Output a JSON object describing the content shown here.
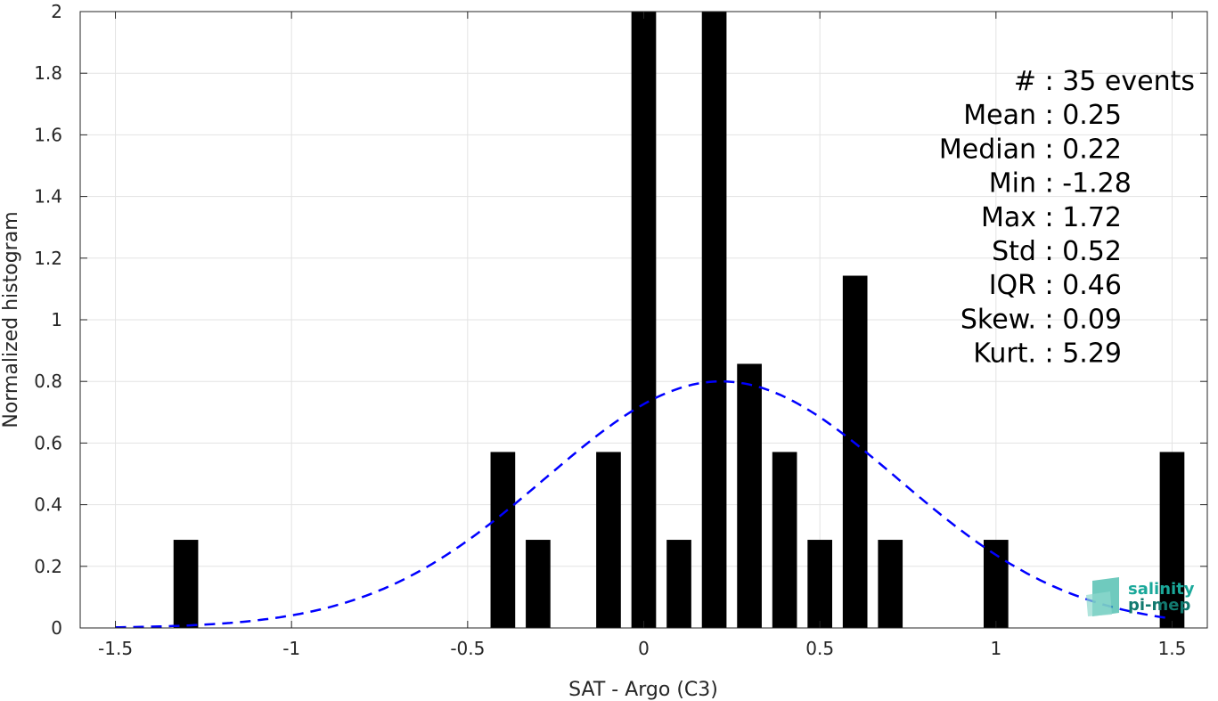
{
  "chart_data": {
    "type": "bar",
    "xlabel": "SAT - Argo (C3)",
    "ylabel": "Normalized histogram",
    "xlim": [
      -1.6,
      1.6
    ],
    "ylim": [
      0,
      2
    ],
    "xticks": [
      -1.5,
      -1,
      -0.5,
      0,
      0.5,
      1,
      1.5
    ],
    "xtick_labels": [
      "-1.5",
      "-1",
      "-0.5",
      "0",
      "0.5",
      "1",
      "1.5"
    ],
    "yticks": [
      0,
      0.2,
      0.4,
      0.6,
      0.8,
      1,
      1.2,
      1.4,
      1.6,
      1.8,
      2
    ],
    "ytick_labels": [
      "0",
      "0.2",
      "0.4",
      "0.6",
      "0.8",
      "1",
      "1.2",
      "1.4",
      "1.6",
      "1.8",
      "2"
    ],
    "grid": true,
    "bar_width": 0.07,
    "bars": [
      {
        "x": -1.3,
        "y": 0.286
      },
      {
        "x": -0.4,
        "y": 0.571
      },
      {
        "x": -0.3,
        "y": 0.286
      },
      {
        "x": -0.1,
        "y": 0.571
      },
      {
        "x": 0.0,
        "y": 2.0
      },
      {
        "x": 0.1,
        "y": 0.286
      },
      {
        "x": 0.2,
        "y": 2.0
      },
      {
        "x": 0.3,
        "y": 0.857
      },
      {
        "x": 0.4,
        "y": 0.571
      },
      {
        "x": 0.5,
        "y": 0.286
      },
      {
        "x": 0.6,
        "y": 1.143
      },
      {
        "x": 0.7,
        "y": 0.286
      },
      {
        "x": 1.0,
        "y": 0.286
      },
      {
        "x": 1.5,
        "y": 0.571
      }
    ],
    "fit_curve": {
      "type": "gaussian",
      "mean": 0.22,
      "sigma": 0.5,
      "peak": 0.8,
      "x_range": [
        -1.5,
        1.5
      ],
      "color": "#0000ff",
      "style": "dashed"
    },
    "bar_color": "#000000",
    "annotations": [
      "#  : 35 events",
      "Mean : 0.25",
      "Median : 0.22",
      "Min : -1.28",
      "Max : 1.72",
      "Std : 0.52",
      "IQR : 0.46",
      "Skew. : 0.09",
      "Kurt. : 5.29"
    ]
  },
  "logo": {
    "line1": "salinity",
    "line2": "pi-mep",
    "color1": "#1aa89a",
    "color2": "#127a70"
  }
}
